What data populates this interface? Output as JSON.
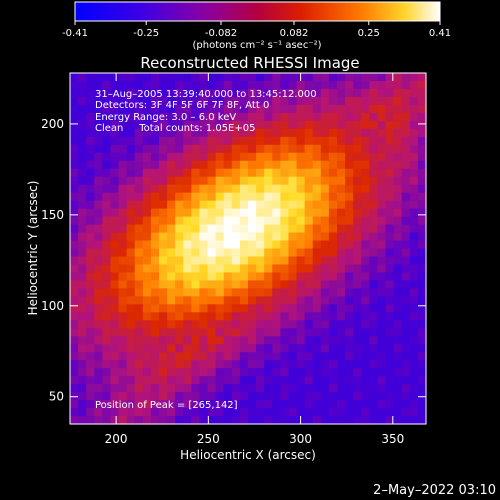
{
  "colorbar": {
    "tick_labels": [
      "-0.41",
      "-0.25",
      "-0.082",
      "0.082",
      "0.25",
      "0.41"
    ],
    "tick_values": [
      -0.41,
      -0.25,
      -0.082,
      0.082,
      0.25,
      0.41
    ],
    "range": [
      -0.41,
      0.41
    ],
    "units_label": "(photons cm⁻² s⁻¹ asec⁻²)"
  },
  "chart_data": {
    "type": "heatmap",
    "title": "Reconstructed RHESSI Image",
    "xlabel": "Heliocentric X (arcsec)",
    "ylabel": "Heliocentric Y (arcsec)",
    "xlim": [
      175,
      368
    ],
    "ylim": [
      35,
      228
    ],
    "x_ticks": [
      200,
      250,
      300,
      350
    ],
    "y_ticks": [
      50,
      100,
      150,
      200
    ],
    "x_tick_labels": [
      "200",
      "250",
      "300",
      "350"
    ],
    "y_tick_labels": [
      "50",
      "100",
      "150",
      "200"
    ],
    "peak": [
      265,
      142
    ],
    "zmax": 0.41,
    "colormap": [
      "#0000ff",
      "#5a00c8",
      "#b41478",
      "#dc2800",
      "#ff7800",
      "#ffdc28",
      "#ffffff"
    ],
    "info": [
      "31–Aug–2005 13:39:40.000 to 13:45:12.000",
      "Detectors: 3F 4F 5F 6F 7F 8F, Att 0",
      "Energy Range: 3.0 – 6.0 keV",
      "Clean     Total counts: 1.05E+05"
    ],
    "peak_label": "Position of Peak = [265,142]"
  },
  "timestamp": "2–May–2022 03:10"
}
